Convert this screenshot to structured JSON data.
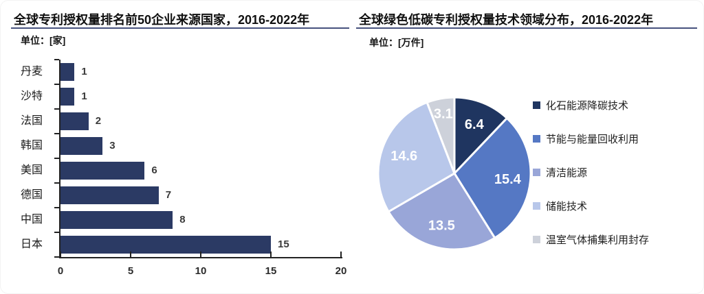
{
  "chart_data": [
    {
      "id": "bar-top50-countries",
      "type": "bar",
      "orientation": "horizontal",
      "title": "全球专利授权量排名前50企业来源国家，2016-2022年",
      "unit_label": "单位：[家]",
      "categories": [
        "丹麦",
        "沙特",
        "法国",
        "韩国",
        "美国",
        "德国",
        "中国",
        "日本"
      ],
      "values": [
        1,
        1,
        2,
        3,
        6,
        7,
        8,
        15
      ],
      "xlabel": "",
      "ylabel": "",
      "xlim": [
        0,
        20
      ],
      "x_ticks": [
        0,
        5,
        10,
        15,
        20
      ],
      "grid": false,
      "value_labels": true,
      "bar_color": "#2b3a64",
      "axis_color": "#222222"
    },
    {
      "id": "pie-green-patent-fields",
      "type": "pie",
      "title": "全球绿色低碳专利授权量技术领域分布，2016-2022年",
      "unit_label": "单位：[万件]",
      "slices": [
        {
          "label": "化石能源降碳技术",
          "value": 6.4,
          "color": "#1f3560"
        },
        {
          "label": "节能与能量回收利用",
          "value": 15.4,
          "color": "#5578c4"
        },
        {
          "label": "清洁能源",
          "value": 13.5,
          "color": "#99a6d8"
        },
        {
          "label": "储能技术",
          "value": 14.6,
          "color": "#b8c7ea"
        },
        {
          "label": "温室气体捕集利用封存",
          "value": 3.1,
          "color": "#cdd1da"
        }
      ],
      "start_angle_deg": 0,
      "direction": "clockwise",
      "data_labels": "values",
      "data_label_color": "#ffffff",
      "slice_border_color": "#ffffff",
      "legend_position": "right"
    }
  ]
}
